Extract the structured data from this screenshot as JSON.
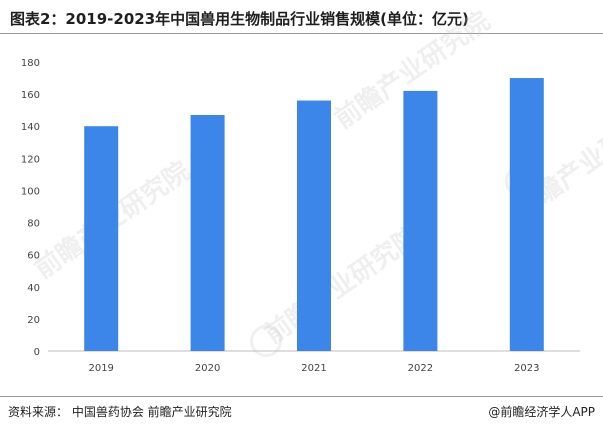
{
  "title": "图表2：2019-2023年中国兽用生物制品行业销售规模(单位：亿元)",
  "source": "资料来源： 中国兽药协会 前瞻产业研究院",
  "brand": "@前瞻经济学人APP",
  "watermark": "前瞻产业研究院",
  "colors": {
    "bar": "#3b86e8",
    "axis": "#bcbcbc"
  },
  "chart_data": {
    "type": "bar",
    "categories": [
      "2019",
      "2020",
      "2021",
      "2022",
      "2023"
    ],
    "values": [
      140,
      147,
      156,
      162,
      170
    ],
    "ylim": [
      0,
      180
    ],
    "yticks": [
      0,
      20,
      40,
      60,
      80,
      100,
      120,
      140,
      160,
      180
    ],
    "grid": false
  }
}
